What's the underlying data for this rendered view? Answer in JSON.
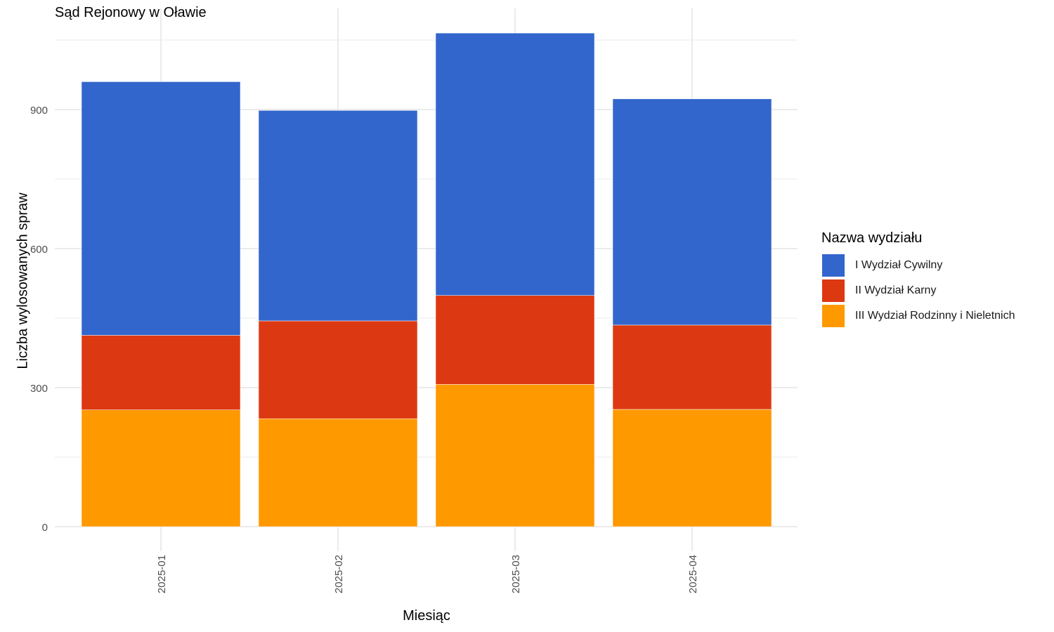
{
  "chart_data": {
    "type": "bar",
    "stacked": true,
    "title": "Sąd Rejonowy w Oławie",
    "xlabel": "Miesiąc",
    "ylabel": "Liczba wylosowanych spraw",
    "categories": [
      "2025-01",
      "2025-02",
      "2025-03",
      "2025-04"
    ],
    "series": [
      {
        "name": "III Wydział Rodzinny i Nieletnich",
        "color": "#FF9900",
        "values": [
          252,
          233,
          307,
          253
        ]
      },
      {
        "name": "II Wydział Karny",
        "color": "#DC3912",
        "values": [
          161,
          211,
          192,
          182
        ]
      },
      {
        "name": "I Wydział Cywilny",
        "color": "#3366CC",
        "values": [
          547,
          454,
          566,
          488
        ]
      }
    ],
    "legend_title": "Nazwa wydziału",
    "legend_order": [
      "I Wydział Cywilny",
      "II Wydział Karny",
      "III Wydział Rodzinny i Nieletnich"
    ],
    "legend_position": "right",
    "y_ticks": [
      0,
      300,
      600,
      900
    ],
    "ylim": [
      0,
      1080
    ],
    "grid": true
  }
}
